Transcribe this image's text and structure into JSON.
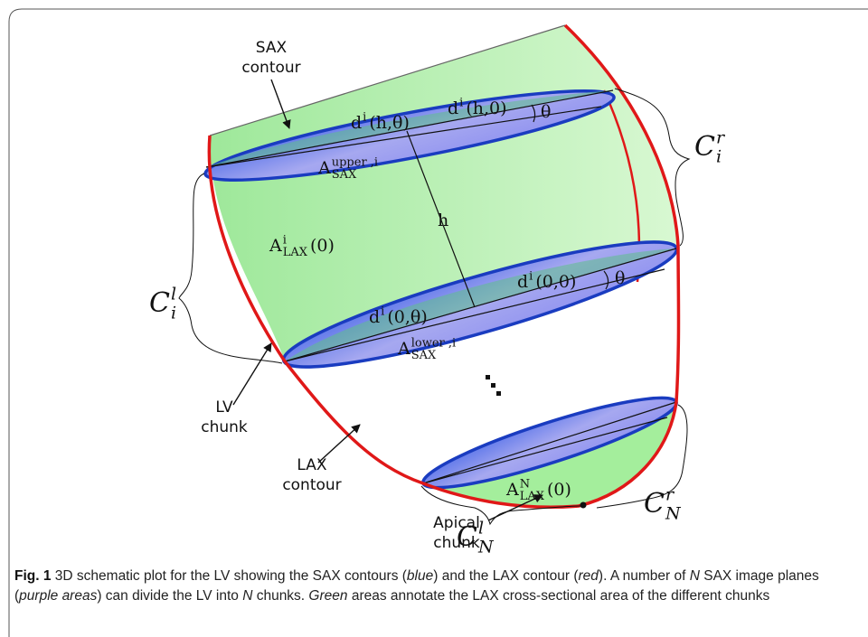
{
  "figure": {
    "labels": {
      "sax_contour": {
        "lines": [
          "SAX",
          "contour"
        ]
      },
      "d_h_theta": {
        "base": "d",
        "sup": "i",
        "rest": "(h,θ)"
      },
      "d_h_0": {
        "base": "d",
        "sup": "i",
        "rest": "(h,0)"
      },
      "theta_upper": {
        "base": "θ"
      },
      "c_i_r": {
        "base": "C",
        "sup": "r",
        "sub": "i"
      },
      "a_sax_upper": {
        "base": "A",
        "sup": "upper ,i",
        "sub": "SAX"
      },
      "h": {
        "base": "h"
      },
      "a_lax_i": {
        "base": "A",
        "sup": "i",
        "sub": "LAX",
        "rest": " (0)"
      },
      "c_i_l": {
        "base": "C",
        "sup": "l",
        "sub": "i"
      },
      "d_0_theta": {
        "base": "d",
        "sup": "i",
        "rest": "(0,θ)"
      },
      "d_0_0": {
        "base": "d",
        "sup": "i",
        "rest": "(0,0)"
      },
      "theta_lower": {
        "base": "θ"
      },
      "a_sax_lower": {
        "base": "A",
        "sup": "lower ,i",
        "sub": "SAX"
      },
      "lv_chunk": {
        "lines": [
          "LV",
          "chunk"
        ]
      },
      "lax_contour": {
        "lines": [
          "LAX",
          "contour"
        ]
      },
      "a_lax_n": {
        "base": "A",
        "sup": "N",
        "sub": "LAX",
        "rest": "(0)"
      },
      "c_n_r": {
        "base": "C",
        "sup": "r",
        "sub": "N"
      },
      "apical_chunk": {
        "lines": [
          "Apical",
          "chunk"
        ]
      },
      "c_n_l": {
        "base": "C",
        "sup": "l",
        "sub": "N"
      }
    }
  },
  "caption": {
    "label": "Fig. 1",
    "segments": [
      {
        "text": " 3D schematic plot for the LV showing the SAX contours ("
      },
      {
        "text": "blue",
        "italic": true
      },
      {
        "text": ") and the LAX contour ("
      },
      {
        "text": "red",
        "italic": true
      },
      {
        "text": "). A number of "
      },
      {
        "text": "N",
        "italic": true
      },
      {
        "text": " SAX image planes ("
      },
      {
        "text": "purple areas",
        "italic": true
      },
      {
        "text": ") can divide the LV into "
      },
      {
        "text": "N",
        "italic": true
      },
      {
        "text": " chunks. "
      },
      {
        "text": "Green",
        "italic": true
      },
      {
        "text": " areas annotate the LAX cross-sectional area of the different chunks"
      }
    ]
  }
}
